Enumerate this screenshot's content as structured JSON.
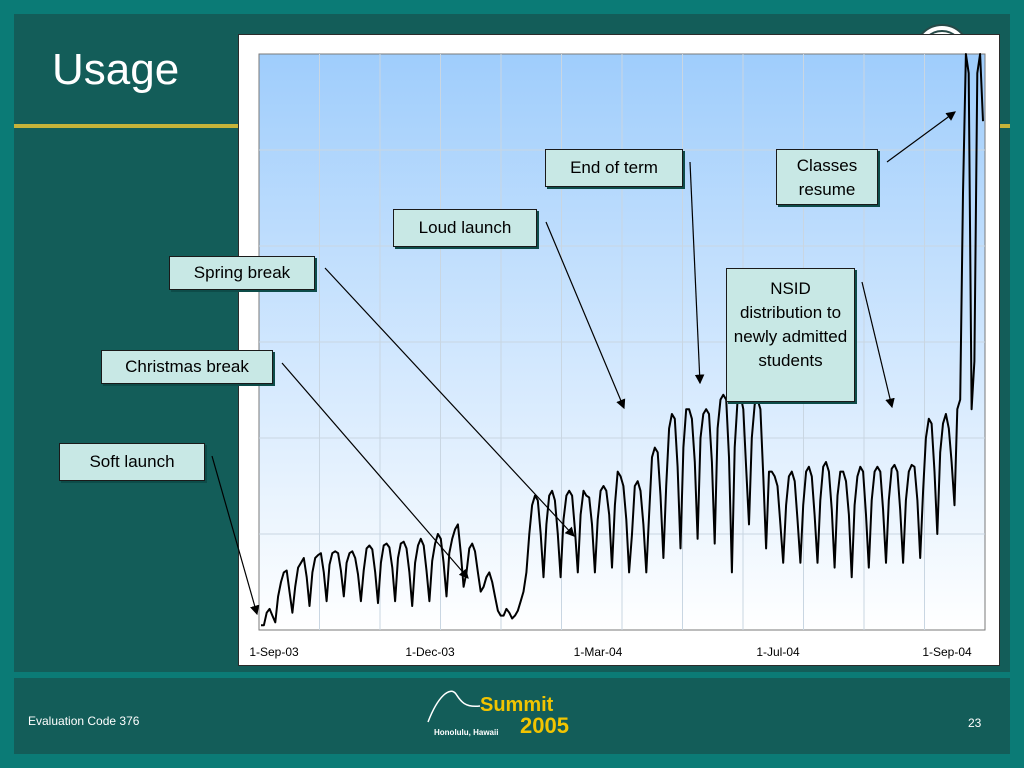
{
  "slide": {
    "title": "Usage",
    "footer_left": "Evaluation Code 376",
    "page_number": "23",
    "logo": {
      "word": "Summit",
      "year": "2005",
      "place": "Honolulu, Hawaii"
    }
  },
  "callouts": {
    "end_of_term": "End of term",
    "classes_resume": "Classes resume",
    "loud_launch": "Loud launch",
    "spring_break": "Spring break",
    "nsid": "NSID distribution to newly admitted students",
    "christmas_break": "Christmas break",
    "soft_launch": "Soft launch"
  },
  "chart_data": {
    "type": "line",
    "title": "",
    "xlabel": "",
    "ylabel": "",
    "x_tick_labels": [
      "1-Sep-03",
      "1-Dec-03",
      "1-Mar-04",
      "1-Jul-04",
      "1-Sep-04"
    ],
    "x_range": [
      "2003-08-28",
      "2004-09-30"
    ],
    "y_range": [
      0,
      600
    ],
    "y_tick_labels_shown": false,
    "grid": true,
    "weekly_pattern_note": "daily values with weekday/weekend cycle",
    "series": [
      {
        "values": [
          [
            5,
            5,
            18,
            22,
            15,
            8,
            35,
            50,
            60,
            62,
            40,
            18,
            45,
            65,
            70,
            75,
            55,
            25,
            60,
            75,
            78,
            80,
            60,
            30,
            68,
            80,
            82,
            80,
            62,
            35,
            70,
            80,
            82,
            75,
            58,
            30,
            62,
            85,
            88,
            84,
            60,
            28,
            70,
            88,
            90,
            86,
            65,
            30,
            75,
            90,
            92,
            85,
            60,
            25,
            70,
            88,
            95,
            88,
            62,
            30,
            72,
            90,
            100,
            95,
            70,
            35,
            80,
            95,
            105,
            110,
            80,
            45,
            60,
            85,
            90,
            82,
            60,
            40,
            45,
            55,
            60,
            50,
            35,
            20,
            15,
            15,
            22,
            18,
            12,
            15,
            20,
            30,
            40,
            60,
            100,
            130,
            140,
            135,
            100,
            55,
            110,
            140,
            145,
            135,
            100,
            55,
            115,
            140,
            145,
            140,
            105,
            60,
            120,
            145,
            140,
            138,
            110,
            60,
            115,
            145,
            150,
            145,
            120,
            65,
            130,
            165,
            160,
            150,
            115,
            60,
            100,
            150,
            155,
            145,
            110,
            60,
            120,
            180,
            190,
            185,
            140,
            75,
            150,
            210,
            225,
            220,
            170,
            85,
            190,
            230,
            230,
            220,
            175,
            95,
            200,
            225,
            230,
            225,
            175,
            90,
            210,
            240,
            245,
            240,
            180,
            60,
            190,
            240,
            245,
            230,
            170,
            110,
            200,
            235,
            240,
            230,
            160,
            85,
            165,
            165,
            160,
            150,
            110,
            70,
            130,
            160,
            165,
            155,
            115,
            70,
            130,
            165,
            170,
            160,
            120,
            70,
            135,
            170,
            175,
            165,
            125,
            65,
            140,
            165,
            165,
            155,
            120,
            55,
            130,
            160,
            170,
            165,
            120,
            65,
            135,
            165,
            170,
            165,
            125,
            70,
            135,
            168,
            172,
            165,
            125,
            70,
            135,
            165,
            172,
            170,
            135,
            75,
            145,
            200,
            220,
            215,
            165,
            100,
            185,
            215,
            225,
            210,
            175,
            130,
            230,
            240,
            455,
            600,
            580,
            230,
            280,
            580,
            600,
            530
          ]
        ]
      }
    ]
  }
}
